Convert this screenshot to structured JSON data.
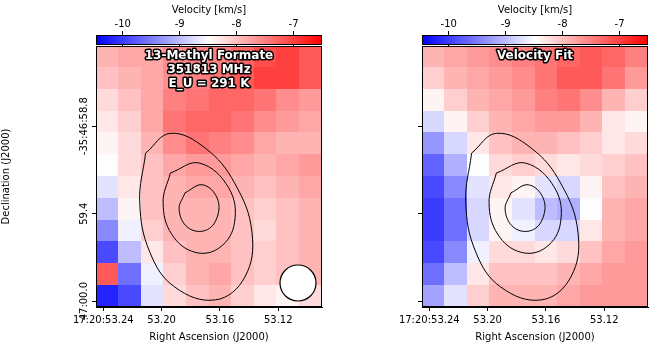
{
  "chart_data": [
    {
      "type": "heatmap",
      "annotations": [
        "13-Methyl Formate",
        "351813 MHz",
        "E_U = 291 K"
      ],
      "xlabel": "Right Ascension (J2000)",
      "ylabel": "Declination (J2000)",
      "xlim": [
        53.245,
        53.09
      ],
      "xticks": [
        {
          "value": 53.24,
          "label": "17:20:53.24"
        },
        {
          "value": 53.2,
          "label": "53.20"
        },
        53.16,
        53.12
      ],
      "ylim": [
        60.04,
        58.25
      ],
      "yticks": [
        {
          "value": 58.8,
          "label": "-35:46:58.8"
        },
        59.4,
        {
          "value": 60.0,
          "label": "47:00.0"
        }
      ],
      "grid": false,
      "colorbar": {
        "label": "Velocity [km/s]",
        "lim": [
          -10.47,
          -6.5
        ],
        "ticks": [
          -10,
          -9,
          -8,
          -7
        ]
      },
      "x": [
        53.237,
        53.222,
        53.206,
        53.191,
        53.175,
        53.16,
        53.144,
        53.129,
        53.113,
        53.098
      ],
      "y": [
        58.325,
        58.474,
        58.623,
        58.772,
        58.921,
        59.071,
        59.22,
        59.369,
        59.518,
        59.667,
        59.817,
        59.966
      ],
      "values": [
        [
          -7.9,
          -7.8,
          -7.8,
          -7.6,
          -7.5,
          -7.5,
          -7.3,
          -7.1,
          -7.0,
          -7.2
        ],
        [
          -8.0,
          -7.9,
          -7.8,
          -7.6,
          -7.5,
          -7.4,
          -7.2,
          -7.0,
          -7.0,
          -7.2
        ],
        [
          -8.2,
          -8.0,
          -7.8,
          -7.5,
          -7.4,
          -7.3,
          -7.3,
          -7.4,
          -7.6,
          -7.7
        ],
        [
          -8.3,
          -8.1,
          -7.8,
          -7.4,
          -7.3,
          -7.3,
          -7.4,
          -7.6,
          -7.7,
          -7.8
        ],
        [
          -8.4,
          -8.2,
          -7.9,
          -7.6,
          -7.4,
          -7.5,
          -7.6,
          -7.8,
          -7.9,
          -7.9
        ],
        [
          -8.5,
          -8.2,
          -8.0,
          -7.8,
          -7.7,
          -7.7,
          -7.8,
          -7.9,
          -7.8,
          -7.7
        ],
        [
          -8.7,
          -8.3,
          -8.0,
          -7.9,
          -7.8,
          -7.8,
          -7.9,
          -8.0,
          -7.9,
          -7.8
        ],
        [
          -9.0,
          -8.4,
          -8.0,
          -7.9,
          -7.9,
          -7.9,
          -8.0,
          -8.1,
          -8.0,
          -7.9
        ],
        [
          -9.4,
          -8.6,
          -8.1,
          -7.9,
          -7.9,
          -7.9,
          -8.0,
          -8.2,
          -8.0,
          -7.9
        ],
        [
          -9.9,
          -9.0,
          -8.3,
          -8.0,
          -7.9,
          -7.9,
          -8.0,
          -8.1,
          -8.0,
          -7.9
        ],
        [
          -7.2,
          -9.6,
          -8.6,
          -8.1,
          -7.9,
          -7.8,
          -8.0,
          -8.1,
          -8.0,
          -7.9
        ],
        [
          -10.2,
          -9.9,
          -8.7,
          -8.2,
          -8.0,
          -7.9,
          -8.1,
          -8.3,
          -8.4,
          -8.2
        ]
      ],
      "contours": [
        {
          "x": [
            53.211,
            53.194,
            53.17,
            53.15,
            53.138,
            53.143,
            53.163,
            53.191,
            53.208,
            53.215
          ],
          "y": [
            58.985,
            58.849,
            58.951,
            59.189,
            59.53,
            59.836,
            59.991,
            59.903,
            59.666,
            59.325
          ]
        },
        {
          "x": [
            53.194,
            53.174,
            53.154,
            53.15,
            53.16,
            53.177,
            53.193,
            53.199
          ],
          "y": [
            59.121,
            59.053,
            59.223,
            59.461,
            59.631,
            59.665,
            59.542,
            59.325
          ]
        },
        {
          "x": [
            53.184,
            53.172,
            53.162,
            53.162,
            53.17,
            53.182,
            53.188
          ],
          "y": [
            59.257,
            59.202,
            59.291,
            59.427,
            59.515,
            59.495,
            59.372
          ]
        }
      ]
    },
    {
      "type": "heatmap",
      "annotations": [
        "Velocity Fit"
      ],
      "xlabel": "Right Ascension (J2000)",
      "xlim": [
        53.245,
        53.09
      ],
      "xticks": [
        {
          "value": 53.24,
          "label": "17:20:53.24"
        },
        {
          "value": 53.2,
          "label": "53.20"
        },
        53.16,
        53.12
      ],
      "ylim": [
        60.04,
        58.25
      ],
      "yticks": [
        58.8,
        59.4,
        60.0
      ],
      "tick_labels": "x",
      "grid": false,
      "colorbar": {
        "label": "Velocity [km/s]",
        "lim": [
          -10.47,
          -6.5
        ],
        "ticks": [
          -10,
          -9,
          -8,
          -7
        ]
      },
      "x": [
        53.237,
        53.222,
        53.206,
        53.191,
        53.175,
        53.16,
        53.144,
        53.129,
        53.113,
        53.098
      ],
      "y": [
        58.325,
        58.474,
        58.623,
        58.772,
        58.921,
        59.071,
        59.22,
        59.369,
        59.518,
        59.667,
        59.817,
        59.966
      ],
      "values": [
        [
          -7.9,
          -7.8,
          -7.7,
          -7.6,
          -7.5,
          -7.4,
          -7.3,
          -7.2,
          -7.3,
          -7.5
        ],
        [
          -8.1,
          -7.9,
          -7.8,
          -7.7,
          -7.6,
          -7.4,
          -7.2,
          -7.2,
          -7.4,
          -7.7
        ],
        [
          -8.4,
          -8.1,
          -7.9,
          -7.8,
          -7.7,
          -7.5,
          -7.4,
          -7.6,
          -7.9,
          -8.1
        ],
        [
          -8.8,
          -8.4,
          -8.1,
          -7.9,
          -7.8,
          -7.7,
          -7.7,
          -7.9,
          -8.3,
          -8.4
        ],
        [
          -9.3,
          -8.8,
          -8.3,
          -8.0,
          -7.9,
          -7.9,
          -8.0,
          -8.1,
          -8.3,
          -8.2
        ],
        [
          -9.7,
          -9.1,
          -8.5,
          -8.2,
          -8.1,
          -8.2,
          -8.3,
          -8.2,
          -8.1,
          -8.0
        ],
        [
          -9.9,
          -9.4,
          -8.7,
          -8.3,
          -8.4,
          -8.7,
          -8.8,
          -8.4,
          -8.0,
          -7.9
        ],
        [
          -10.0,
          -9.6,
          -8.8,
          -8.4,
          -8.7,
          -9.0,
          -9.1,
          -8.5,
          -7.9,
          -7.8
        ],
        [
          -10.0,
          -9.6,
          -8.8,
          -8.4,
          -8.6,
          -8.8,
          -8.8,
          -8.3,
          -7.9,
          -7.8
        ],
        [
          -9.9,
          -9.4,
          -8.6,
          -8.2,
          -8.2,
          -8.3,
          -8.2,
          -8.0,
          -7.8,
          -7.7
        ],
        [
          -9.6,
          -9.0,
          -8.3,
          -8.0,
          -8.0,
          -8.0,
          -7.9,
          -7.8,
          -7.7,
          -7.7
        ],
        [
          -9.2,
          -8.7,
          -8.1,
          -7.9,
          -7.9,
          -7.9,
          -7.8,
          -7.7,
          -7.7,
          -7.7
        ]
      ],
      "contours": [
        {
          "x": [
            53.211,
            53.194,
            53.17,
            53.15,
            53.138,
            53.143,
            53.163,
            53.191,
            53.208,
            53.215
          ],
          "y": [
            58.985,
            58.849,
            58.951,
            59.189,
            59.53,
            59.836,
            59.991,
            59.903,
            59.666,
            59.325
          ]
        },
        {
          "x": [
            53.194,
            53.174,
            53.154,
            53.15,
            53.16,
            53.177,
            53.193,
            53.199
          ],
          "y": [
            59.121,
            59.053,
            59.223,
            59.461,
            59.631,
            59.665,
            59.542,
            59.325
          ]
        },
        {
          "x": [
            53.184,
            53.172,
            53.162,
            53.162,
            53.17,
            53.182,
            53.188
          ],
          "y": [
            59.257,
            59.202,
            59.291,
            59.427,
            59.515,
            59.495,
            59.372
          ]
        }
      ]
    }
  ]
}
